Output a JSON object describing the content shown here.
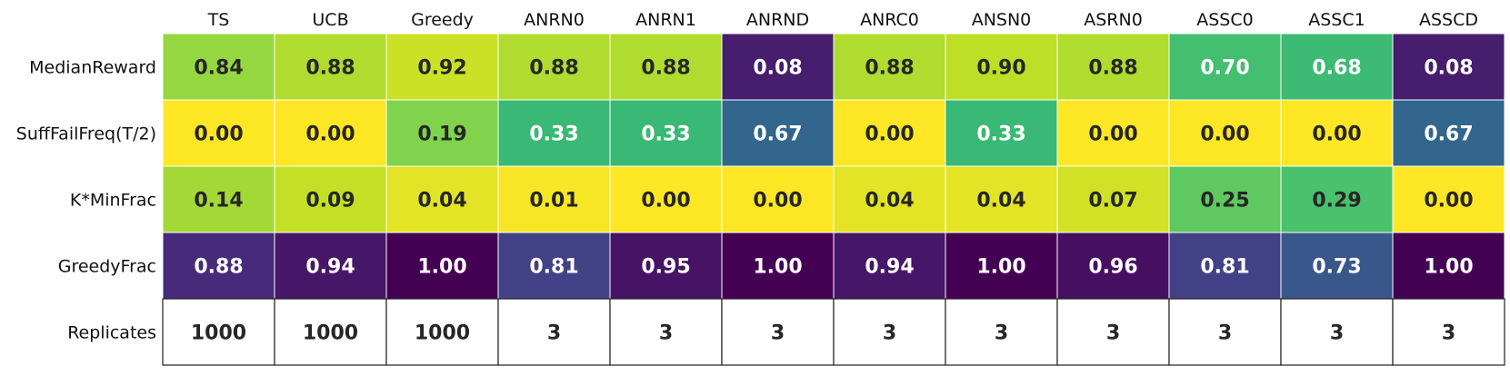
{
  "chart_data": {
    "type": "heatmap",
    "title": "",
    "xlabel": "",
    "ylabel": "",
    "colormap": "viridis",
    "color_range": [
      0,
      1
    ],
    "columns": [
      "TS",
      "UCB",
      "Greedy",
      "ANRN0",
      "ANRN1",
      "ANRND",
      "ANRC0",
      "ANSN0",
      "ASRN0",
      "ASSC0",
      "ASSC1",
      "ASSCD"
    ],
    "rows": [
      {
        "name": "MedianReward",
        "colormap": "viridis",
        "values": [
          0.84,
          0.88,
          0.92,
          0.88,
          0.88,
          0.08,
          0.88,
          0.9,
          0.88,
          0.7,
          0.68,
          0.08
        ],
        "labels": [
          "0.84",
          "0.88",
          "0.92",
          "0.88",
          "0.88",
          "0.08",
          "0.88",
          "0.90",
          "0.88",
          "0.70",
          "0.68",
          "0.08"
        ]
      },
      {
        "name": "SuffFailFreq(T/2)",
        "colormap": "viridis_r",
        "values": [
          0.0,
          0.0,
          0.19,
          0.33,
          0.33,
          0.67,
          0.0,
          0.33,
          0.0,
          0.0,
          0.0,
          0.67
        ],
        "labels": [
          "0.00",
          "0.00",
          "0.19",
          "0.33",
          "0.33",
          "0.67",
          "0.00",
          "0.33",
          "0.00",
          "0.00",
          "0.00",
          "0.67"
        ]
      },
      {
        "name": "K*MinFrac",
        "colormap": "viridis_r",
        "values": [
          0.14,
          0.09,
          0.04,
          0.01,
          0.0,
          0.0,
          0.04,
          0.04,
          0.07,
          0.25,
          0.29,
          0.0
        ],
        "labels": [
          "0.14",
          "0.09",
          "0.04",
          "0.01",
          "0.00",
          "0.00",
          "0.04",
          "0.04",
          "0.07",
          "0.25",
          "0.29",
          "0.00"
        ]
      },
      {
        "name": "GreedyFrac",
        "colormap": "viridis_r",
        "values": [
          0.88,
          0.94,
          1.0,
          0.81,
          0.95,
          1.0,
          0.94,
          1.0,
          0.96,
          0.81,
          0.73,
          1.0
        ],
        "labels": [
          "0.88",
          "0.94",
          "1.00",
          "0.81",
          "0.95",
          "1.00",
          "0.94",
          "1.00",
          "0.96",
          "0.81",
          "0.73",
          "1.00"
        ]
      },
      {
        "name": "Replicates",
        "colormap": "none",
        "values": [
          1000,
          1000,
          1000,
          3,
          3,
          3,
          3,
          3,
          3,
          3,
          3,
          3
        ],
        "labels": [
          "1000",
          "1000",
          "1000",
          "3",
          "3",
          "3",
          "3",
          "3",
          "3",
          "3",
          "3",
          "3"
        ]
      }
    ],
    "grid": true,
    "legend": "none"
  }
}
